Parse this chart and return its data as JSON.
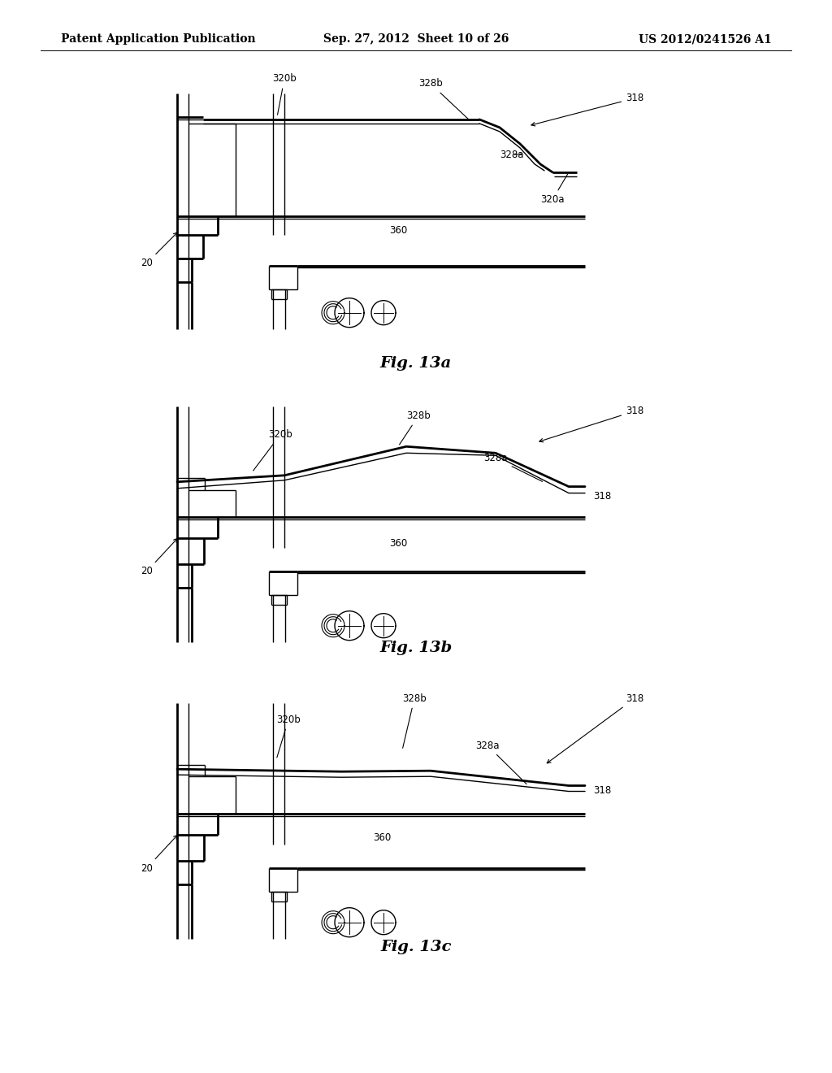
{
  "bg_color": "#ffffff",
  "lc": "#000000",
  "lw": 1.0,
  "tlw": 2.0,
  "lfs": 8.5,
  "cfs": 14,
  "header_left": "Patent Application Publication",
  "header_center": "Sep. 27, 2012  Sheet 10 of 26",
  "header_right": "US 2012/0241526 A1"
}
